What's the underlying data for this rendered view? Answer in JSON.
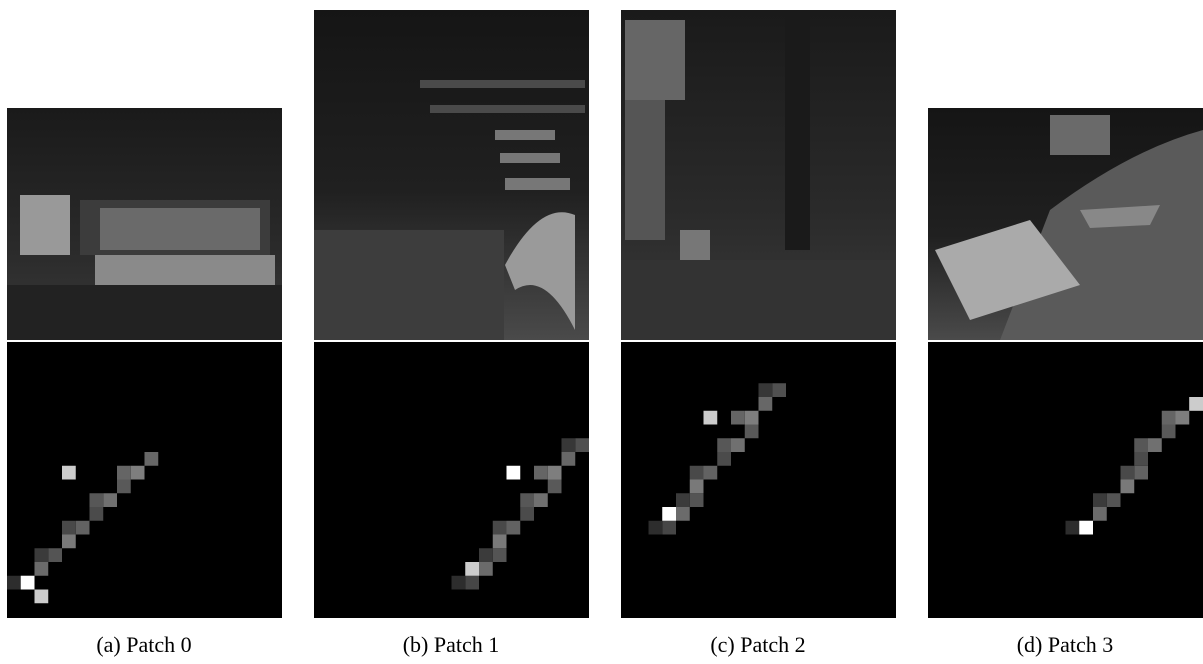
{
  "figure": {
    "subfigures": [
      {
        "caption": "(a) Patch 0"
      },
      {
        "caption": "(b) Patch 1"
      },
      {
        "caption": "(c) Patch 2"
      },
      {
        "caption": "(d) Patch 3"
      }
    ]
  }
}
